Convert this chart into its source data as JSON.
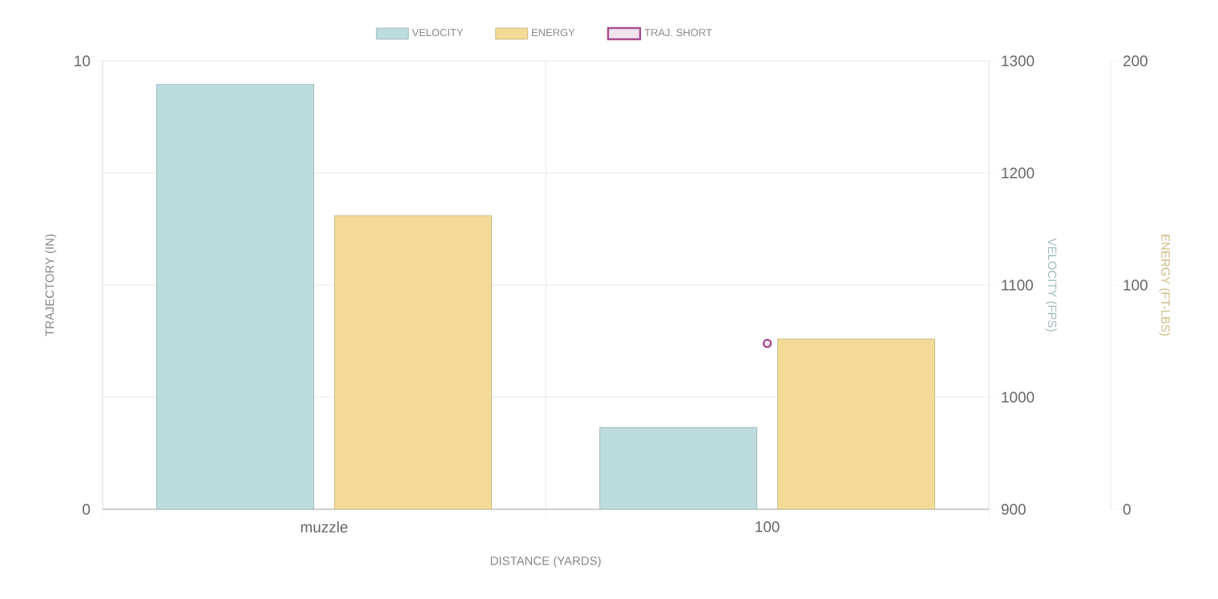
{
  "chart_data": {
    "type": "bar",
    "xlabel": "DISTANCE (YARDS)",
    "ylabel": "TRAJECTORY (IN)",
    "y2label": "VELOCITY (FPS)",
    "y3label": "ENERGY (FT-LBS)",
    "categories": [
      "muzzle",
      "100"
    ],
    "ylim": [
      0,
      10
    ],
    "yticks": [
      0,
      10
    ],
    "y2lim": [
      900,
      1300
    ],
    "y2ticks": [
      900,
      1000,
      1100,
      1200,
      1300
    ],
    "y3lim": [
      0,
      200
    ],
    "y3ticks": [
      0,
      100,
      200
    ],
    "grid": true,
    "legend": "top",
    "series": [
      {
        "name": "VELOCITY",
        "axis": "y2",
        "color": "#bddcde",
        "values": [
          1279,
          973
        ]
      },
      {
        "name": "ENERGY",
        "axis": "y3",
        "color": "#f3da97",
        "values": [
          131,
          76
        ]
      },
      {
        "name": "TRAJ. SHORT",
        "type": "scatter",
        "axis": "y",
        "color": "#a64d8f",
        "marker": "circle",
        "values": [
          null,
          3.7
        ]
      }
    ]
  }
}
